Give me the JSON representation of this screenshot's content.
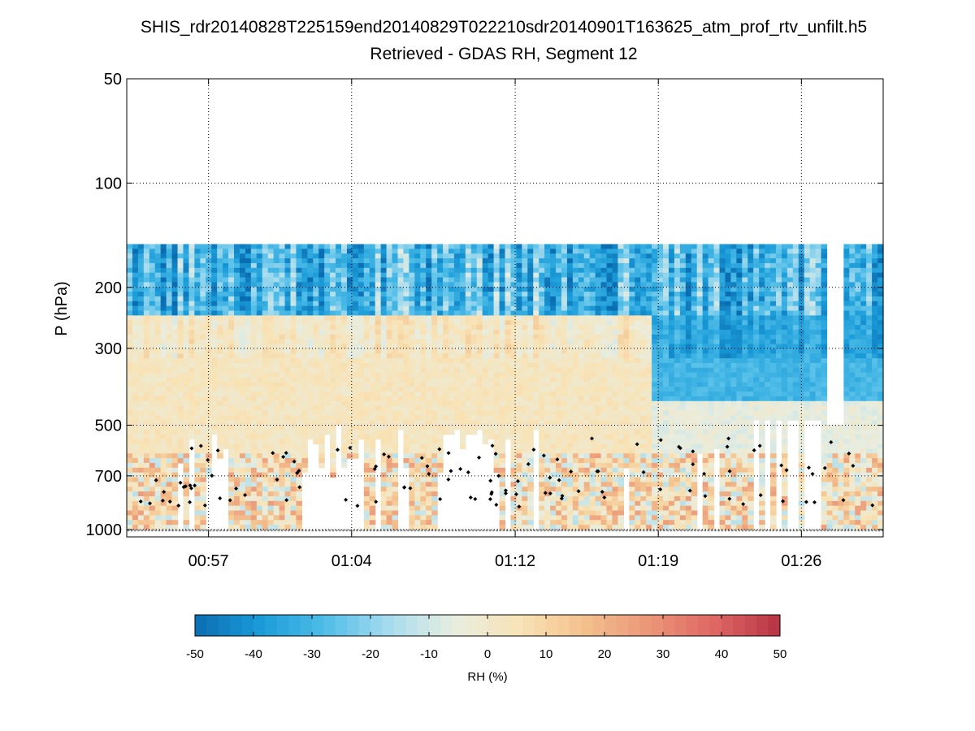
{
  "chart_data": {
    "type": "heatmap",
    "title": "SHIS_rdr20140828T225159end20140829T022210sdr20140901T163625_atm_prof_rtv_unfilt.h5",
    "subtitle": "Retrieved - GDAS RH, Segment 12",
    "xlabel": "",
    "ylabel": "P (hPa)",
    "x_ticks": [
      "00:57",
      "01:04",
      "01:12",
      "01:19",
      "01:26"
    ],
    "x_tick_minutes": [
      57,
      64,
      72,
      79,
      86
    ],
    "x_range_minutes": [
      53.0,
      90.0
    ],
    "y_scale": "log",
    "y_ticks": [
      50,
      100,
      200,
      300,
      500,
      700,
      1000
    ],
    "y_range_hpa": [
      50,
      1050
    ],
    "data_top_hpa": 150,
    "grid": "dotted",
    "colorbar": {
      "label": "RH (%)",
      "ticks": [
        -50,
        -40,
        -30,
        -20,
        -10,
        0,
        10,
        20,
        30,
        40,
        50
      ],
      "range": [
        -50,
        50
      ],
      "colormap": [
        "#0b6db1",
        "#1a9bd8",
        "#4fbde8",
        "#a8dcee",
        "#e8ede0",
        "#f8e3b6",
        "#f3c08c",
        "#ea9578",
        "#de6663",
        "#b63443"
      ]
    },
    "markers": {
      "diamond_color": "#000000",
      "surface_color": "#888888"
    }
  }
}
